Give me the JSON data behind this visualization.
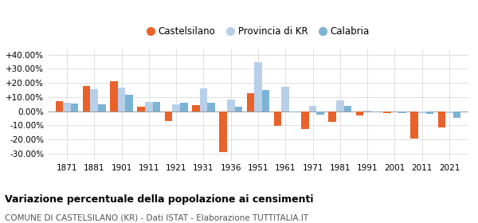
{
  "years": [
    1871,
    1881,
    1901,
    1911,
    1921,
    1931,
    1936,
    1951,
    1961,
    1971,
    1981,
    1991,
    2001,
    2011,
    2021
  ],
  "castelsilano": [
    7.0,
    18.0,
    21.0,
    3.0,
    -7.0,
    4.0,
    -29.0,
    12.5,
    -10.5,
    -12.5,
    -7.5,
    -3.0,
    -1.5,
    -19.5,
    -11.5
  ],
  "provincia_kr": [
    6.0,
    15.5,
    16.5,
    6.5,
    5.0,
    16.0,
    8.0,
    35.0,
    17.0,
    3.5,
    7.5,
    0.5,
    -0.5,
    -1.5,
    -1.5
  ],
  "calabria": [
    5.5,
    5.0,
    11.5,
    6.5,
    6.0,
    6.0,
    3.0,
    15.0,
    -1.0,
    -2.5,
    3.5,
    -1.0,
    -1.5,
    -2.0,
    -4.5
  ],
  "color_castelsilano": "#e8622a",
  "color_provincia": "#b8cfea",
  "color_calabria": "#7bb3d4",
  "title": "Variazione percentuale della popolazione ai censimenti",
  "subtitle": "COMUNE DI CASTELSILANO (KR) - Dati ISTAT - Elaborazione TUTTITALIA.IT",
  "ylim": [
    -35,
    44
  ],
  "yticks": [
    -30,
    -20,
    -10,
    0,
    10,
    20,
    30,
    40
  ],
  "ytick_labels": [
    "-30.00%",
    "-20.00%",
    "-10.00%",
    "0.00%",
    "+10.00%",
    "+20.00%",
    "+30.00%",
    "+40.00%"
  ],
  "legend_castelsilano": "Castelsilano",
  "legend_provincia": "Provincia di KR",
  "legend_calabria": "Calabria"
}
